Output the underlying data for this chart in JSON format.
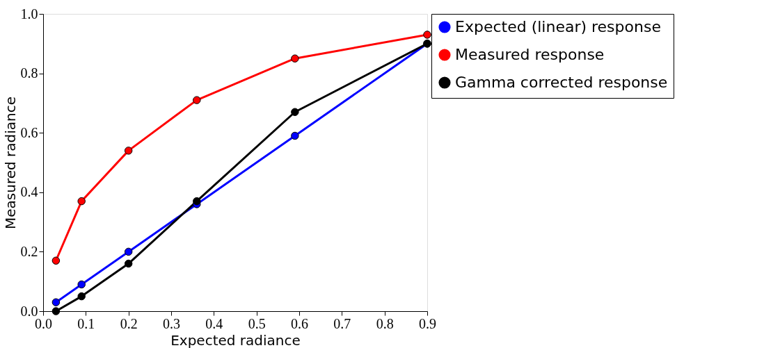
{
  "chart_data": {
    "type": "line",
    "xlabel": "Expected radiance",
    "ylabel": "Measured radiance",
    "x": [
      0.03,
      0.09,
      0.2,
      0.36,
      0.59,
      0.9
    ],
    "series": [
      {
        "name": "Expected (linear) response",
        "color": "#0000ff",
        "values": [
          0.03,
          0.09,
          0.2,
          0.36,
          0.59,
          0.9
        ]
      },
      {
        "name": "Measured response",
        "color": "#ff0000",
        "values": [
          0.17,
          0.37,
          0.54,
          0.71,
          0.85,
          0.93
        ]
      },
      {
        "name": "Gamma corrected response",
        "color": "#000000",
        "values": [
          0.0,
          0.05,
          0.16,
          0.37,
          0.67,
          0.9
        ]
      }
    ],
    "xlim": [
      0,
      0.9
    ],
    "ylim": [
      0,
      1
    ],
    "xticks": [
      {
        "value": 0,
        "label": "0.0"
      },
      {
        "value": 0.1,
        "label": "0.1"
      },
      {
        "value": 0.2,
        "label": "0.2"
      },
      {
        "value": 0.3,
        "label": "0.3"
      },
      {
        "value": 0.4,
        "label": "0.4"
      },
      {
        "value": 0.5,
        "label": "0.5"
      },
      {
        "value": 0.6,
        "label": "0.6"
      },
      {
        "value": 0.7,
        "label": "0.7"
      },
      {
        "value": 0.8,
        "label": "0.8"
      },
      {
        "value": 0.9,
        "label": "0.9"
      }
    ],
    "yticks": [
      {
        "value": 0,
        "label": "0.0"
      },
      {
        "value": 0.2,
        "label": "0.2"
      },
      {
        "value": 0.4,
        "label": "0.4"
      },
      {
        "value": 0.6,
        "label": "0.6"
      },
      {
        "value": 0.8,
        "label": "0.8"
      },
      {
        "value": 1,
        "label": "1.0"
      }
    ],
    "grid": false,
    "legend": "right",
    "marker": "circle",
    "line_style": "solid"
  }
}
